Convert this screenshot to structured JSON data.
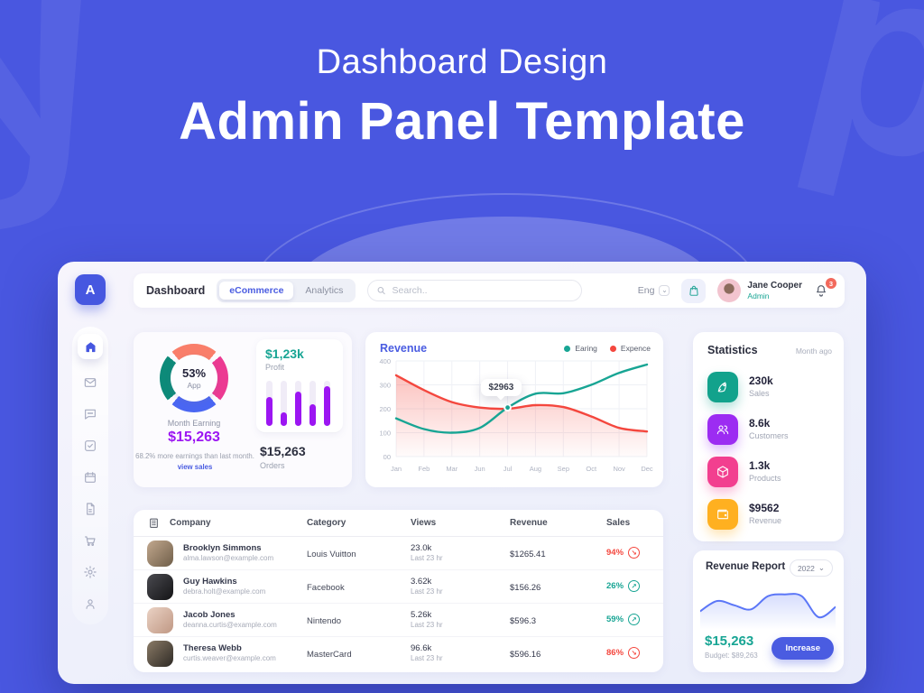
{
  "hero": {
    "subtitle": "Dashboard Design",
    "title": "Admin Panel Template"
  },
  "icons": {
    "chevron_down": "⌄",
    "trend_up": "↗",
    "trend_down": "↘"
  },
  "colors": {
    "accent_blue": "#4A5CE1",
    "teal": "#18A594",
    "red": "#F4473E",
    "purple": "#9C16F2",
    "background_blue": "#4957E0",
    "trend_up": "#18A594",
    "trend_down": "#F4473E"
  },
  "topbar": {
    "title": "Dashboard",
    "tabs": [
      {
        "label": "eCommerce",
        "active": true
      },
      {
        "label": "Analytics",
        "active": false
      }
    ],
    "search_placeholder": "Search..",
    "language": "Eng",
    "user": {
      "name": "Jane Cooper",
      "role": "Admin"
    },
    "notification_count": "3"
  },
  "sidebar": {
    "logo": "A",
    "items": [
      {
        "icon": "home-icon",
        "active": true
      },
      {
        "icon": "mail-icon",
        "active": false
      },
      {
        "icon": "chat-icon",
        "active": false
      },
      {
        "icon": "tasks-icon",
        "active": false
      },
      {
        "icon": "calendar-icon",
        "active": false
      },
      {
        "icon": "document-icon",
        "active": false
      },
      {
        "icon": "cart-icon",
        "active": false
      },
      {
        "icon": "settings-icon",
        "active": false
      },
      {
        "icon": "profile-icon",
        "active": false
      }
    ]
  },
  "earnings_card": {
    "donut": {
      "percent": "53%",
      "label": "App",
      "colors": [
        "#F97E6A",
        "#EC3A92",
        "#4A66F2",
        "#0D8A79"
      ]
    },
    "month_earning_label": "Month Earning",
    "month_earning_value": "$15,263",
    "note": "68.2% more earnings than last month.",
    "note_link": "view sales",
    "profit_value": "$1,23k",
    "profit_label": "Profit",
    "orders_value": "$15,263",
    "orders_label": "Orders"
  },
  "revenue_card": {
    "title": "Revenue",
    "legend": [
      {
        "label": "Earing",
        "color": "#18A594"
      },
      {
        "label": "Expence",
        "color": "#F4473E"
      }
    ],
    "tooltip": "$2963"
  },
  "statistics_card": {
    "title": "Statistics",
    "period": "Month ago",
    "items": [
      {
        "value": "230k",
        "label": "Sales",
        "color": "#12A28C",
        "icon": "rocket-icon"
      },
      {
        "value": "8.6k",
        "label": "Customers",
        "color": "#9C2CF2",
        "icon": "customers-icon"
      },
      {
        "value": "1.3k",
        "label": "Products",
        "color": "#F23F8F",
        "icon": "products-icon"
      },
      {
        "value": "$9562",
        "label": "Revenue",
        "color": "#FFB020",
        "icon": "wallet-icon"
      }
    ]
  },
  "revenue_report_card": {
    "title": "Revenue Report",
    "year": "2022",
    "value": "$15,263",
    "budget": "Budget: $89,263",
    "button_label": "Increase"
  },
  "table": {
    "headers": [
      "Company",
      "Category",
      "Views",
      "Revenue",
      "Sales"
    ],
    "rows": [
      {
        "name": "Brooklyn Simmons",
        "email": "alma.lawson@example.com",
        "category": "Louis Vuitton",
        "views": "23.0k",
        "views_sub": "Last 23 hr",
        "revenue": "$1265.41",
        "sales": "94%",
        "trend": "down",
        "avatar_colors": [
          "#c2a88e",
          "#6f5e49"
        ]
      },
      {
        "name": "Guy Hawkins",
        "email": "debra.holt@example.com",
        "category": "Facebook",
        "views": "3.62k",
        "views_sub": "Last 23 hr",
        "revenue": "$156.26",
        "sales": "26%",
        "trend": "up",
        "avatar_colors": [
          "#4a4a50",
          "#141416"
        ]
      },
      {
        "name": "Jacob Jones",
        "email": "deanna.curtis@example.com",
        "category": "Nintendo",
        "views": "5.26k",
        "views_sub": "Last 23 hr",
        "revenue": "$596.3",
        "sales": "59%",
        "trend": "up",
        "avatar_colors": [
          "#ead2c4",
          "#c09884"
        ]
      },
      {
        "name": "Theresa Webb",
        "email": "curtis.weaver@example.com",
        "category": "MasterCard",
        "views": "96.6k",
        "views_sub": "Last 23 hr",
        "revenue": "$596.16",
        "sales": "86%",
        "trend": "down",
        "avatar_colors": [
          "#8a7a66",
          "#2e2a25"
        ]
      }
    ]
  },
  "chart_data": [
    {
      "type": "line",
      "title": "Revenue",
      "x": [
        "Jan",
        "Feb",
        "Mar",
        "Jun",
        "Jul",
        "Aug",
        "Sep",
        "Oct",
        "Nov",
        "Dec"
      ],
      "y_ticks": [
        "00",
        "100",
        "200",
        "300",
        "400"
      ],
      "ylim": [
        0,
        400
      ],
      "grid": true,
      "legend_position": "top-right",
      "series": [
        {
          "name": "Earing",
          "color": "#18A594",
          "values": [
            160,
            115,
            100,
            120,
            205,
            263,
            265,
            300,
            350,
            385
          ]
        },
        {
          "name": "Expence",
          "color": "#F4473E",
          "area": true,
          "values": [
            340,
            278,
            228,
            205,
            200,
            215,
            207,
            168,
            120,
            105
          ]
        }
      ],
      "tooltip": {
        "label": "$2963",
        "series": "Earing",
        "index": 4
      }
    },
    {
      "type": "bar",
      "title": "Profit",
      "values": [
        65,
        30,
        76,
        48,
        88
      ],
      "max": 100,
      "color": "#9C16F2",
      "track_color": "#f0ecf7"
    },
    {
      "type": "area",
      "title": "Revenue Report",
      "color": "#5B76F7",
      "values": [
        25,
        42,
        35,
        28,
        50,
        53,
        50,
        15,
        32
      ],
      "max": 60
    }
  ]
}
